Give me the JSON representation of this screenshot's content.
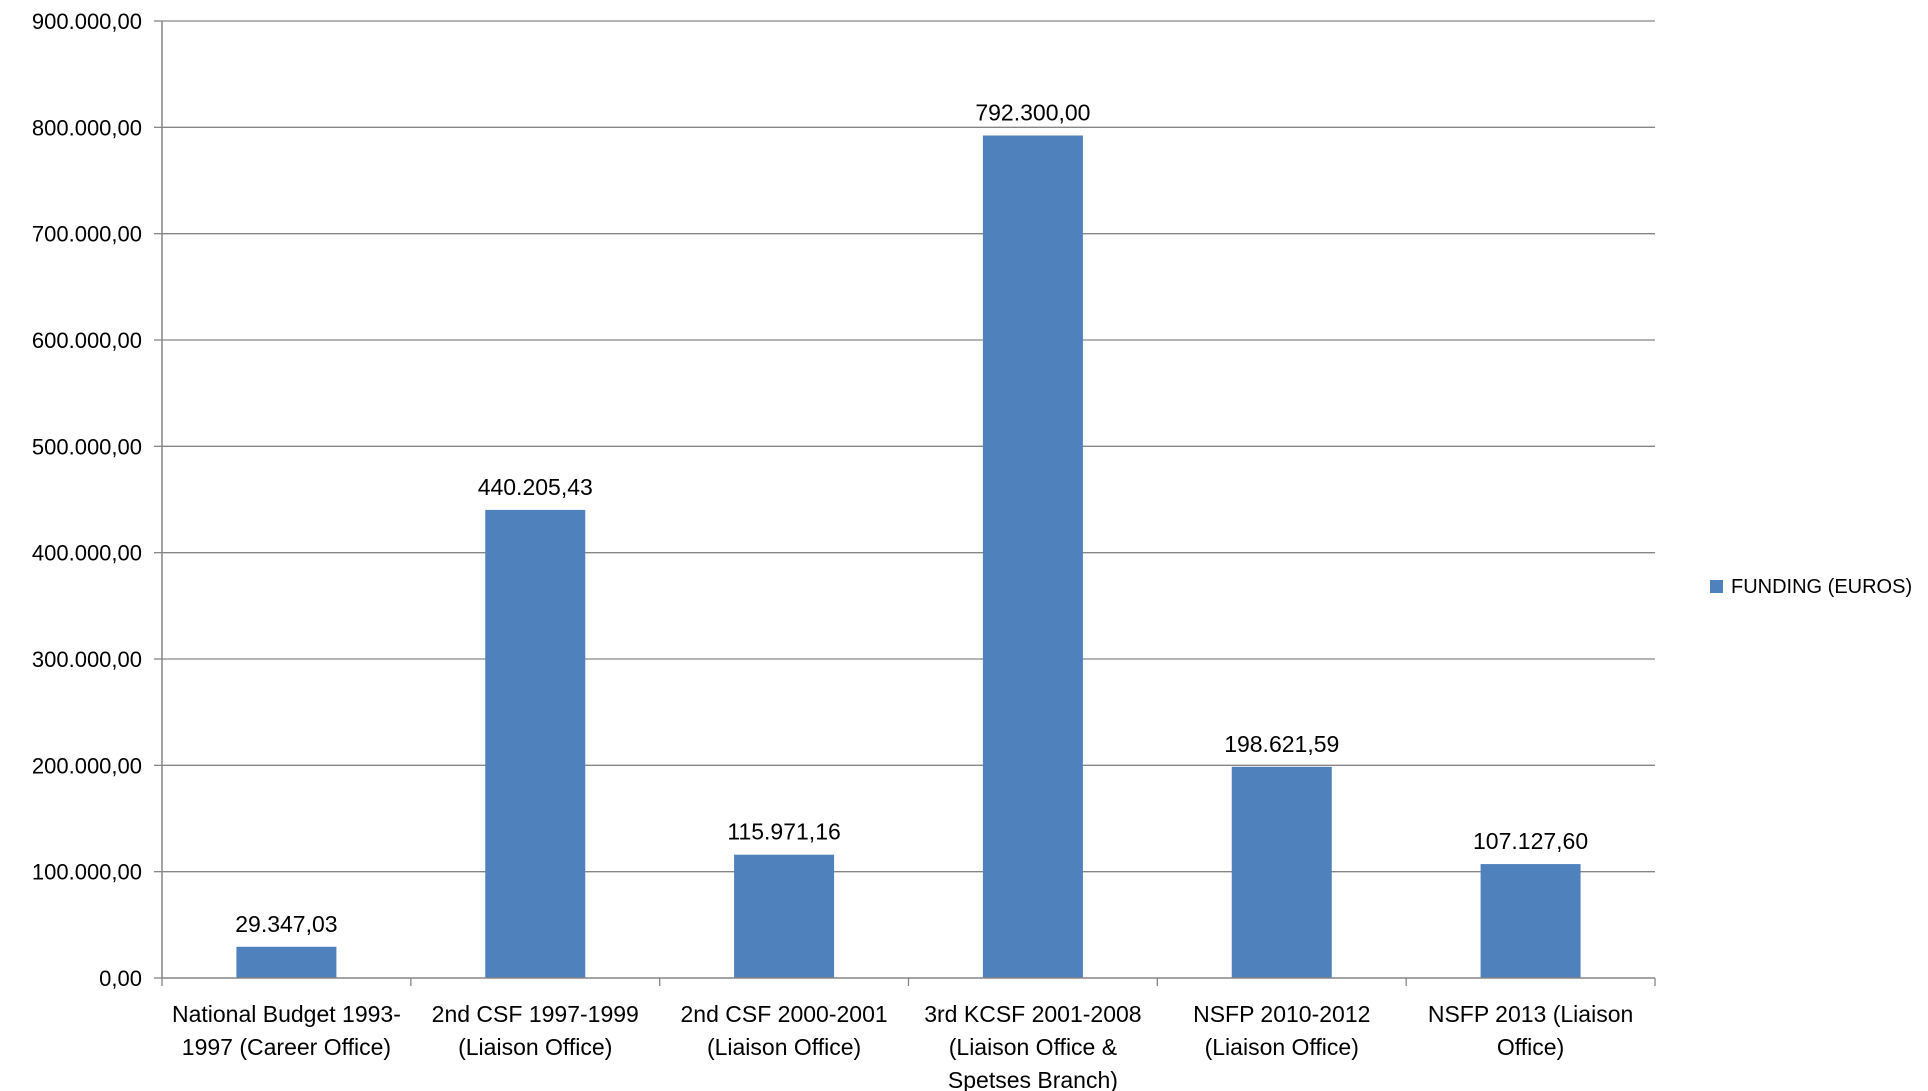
{
  "chart_data": {
    "type": "bar",
    "categories": [
      [
        "National Budget 1993-",
        "1997 (Career Office)"
      ],
      [
        "2nd CSF 1997-1999",
        "(Liaison Office)"
      ],
      [
        "2nd CSF 2000-2001",
        "(Liaison Office)"
      ],
      [
        "3rd KCSF 2001-2008",
        "(Liaison Office &",
        "Spetses Branch)"
      ],
      [
        "NSFP 2010-2012",
        "(Liaison Office)"
      ],
      [
        "NSFP 2013 (Liaison",
        "Office)"
      ]
    ],
    "series": [
      {
        "name": "FUNDING (EUROS)",
        "color": "#4F81BD",
        "values": [
          29347.03,
          440205.43,
          115971.16,
          792300.0,
          198621.59,
          107127.6
        ],
        "data_labels": [
          "29.347,03",
          "440.205,43",
          "115.971,16",
          "792.300,00",
          "198.621,59",
          "107.127,60"
        ]
      }
    ],
    "ylim": [
      0,
      900000
    ],
    "yticks": [
      0,
      100000,
      200000,
      300000,
      400000,
      500000,
      600000,
      700000,
      800000,
      900000
    ],
    "ytick_labels": [
      "0,00",
      "100.000,00",
      "200.000,00",
      "300.000,00",
      "400.000,00",
      "500.000,00",
      "600.000,00",
      "700.000,00",
      "800.000,00",
      "900.000,00"
    ],
    "grid": true,
    "legend_position": "right",
    "title": "",
    "xlabel": "",
    "ylabel": ""
  }
}
